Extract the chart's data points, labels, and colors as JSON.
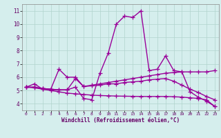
{
  "xlabel": "Windchill (Refroidissement éolien,°C)",
  "xlim": [
    -0.5,
    23.5
  ],
  "ylim": [
    3.5,
    11.5
  ],
  "xticks": [
    0,
    1,
    2,
    3,
    4,
    5,
    6,
    7,
    8,
    9,
    10,
    11,
    12,
    13,
    14,
    15,
    16,
    17,
    18,
    19,
    20,
    21,
    22,
    23
  ],
  "yticks": [
    4,
    5,
    6,
    7,
    8,
    9,
    10,
    11
  ],
  "background_color": "#d5eeed",
  "grid_color": "#b0d4cc",
  "line_color": "#990099",
  "line_width": 1.0,
  "marker": "+",
  "marker_size": 4,
  "series": [
    {
      "x": [
        0,
        1,
        2,
        3,
        4,
        5,
        6,
        7,
        8,
        9,
        10,
        11,
        12,
        13,
        14,
        15,
        16,
        17,
        18,
        19,
        20,
        21,
        22,
        23
      ],
      "y": [
        5.25,
        5.5,
        5.1,
        5.05,
        5.05,
        5.05,
        5.25,
        4.4,
        4.3,
        6.3,
        7.8,
        10.0,
        10.6,
        10.5,
        11.0,
        6.5,
        6.6,
        7.6,
        6.5,
        6.4,
        4.9,
        4.5,
        4.2,
        3.8
      ]
    },
    {
      "x": [
        0,
        1,
        2,
        3,
        4,
        5,
        6,
        7,
        8,
        9,
        10,
        11,
        12,
        13,
        14,
        15,
        16,
        17,
        18,
        19,
        20,
        21,
        22,
        23
      ],
      "y": [
        5.25,
        5.25,
        5.15,
        5.1,
        6.6,
        6.0,
        6.0,
        5.3,
        5.4,
        5.5,
        5.6,
        5.7,
        5.8,
        5.9,
        6.0,
        6.1,
        6.2,
        6.3,
        6.35,
        6.4,
        6.4,
        6.4,
        6.4,
        6.5
      ]
    },
    {
      "x": [
        0,
        1,
        2,
        3,
        4,
        5,
        6,
        7,
        8,
        9,
        10,
        11,
        12,
        13,
        14,
        15,
        16,
        17,
        18,
        19,
        20,
        21,
        22,
        23
      ],
      "y": [
        5.25,
        5.25,
        5.15,
        5.1,
        5.05,
        5.05,
        5.9,
        5.3,
        5.35,
        5.4,
        5.5,
        5.5,
        5.6,
        5.65,
        5.7,
        5.8,
        5.85,
        5.9,
        5.7,
        5.4,
        5.1,
        4.85,
        4.55,
        4.3
      ]
    },
    {
      "x": [
        0,
        1,
        2,
        3,
        4,
        5,
        6,
        7,
        8,
        9,
        10,
        11,
        12,
        13,
        14,
        15,
        16,
        17,
        18,
        19,
        20,
        21,
        22,
        23
      ],
      "y": [
        5.25,
        5.2,
        5.1,
        5.0,
        4.9,
        4.8,
        4.75,
        4.7,
        4.65,
        4.62,
        4.6,
        4.58,
        4.57,
        4.56,
        4.55,
        4.55,
        4.55,
        4.55,
        4.53,
        4.5,
        4.45,
        4.4,
        4.3,
        3.8
      ]
    }
  ]
}
